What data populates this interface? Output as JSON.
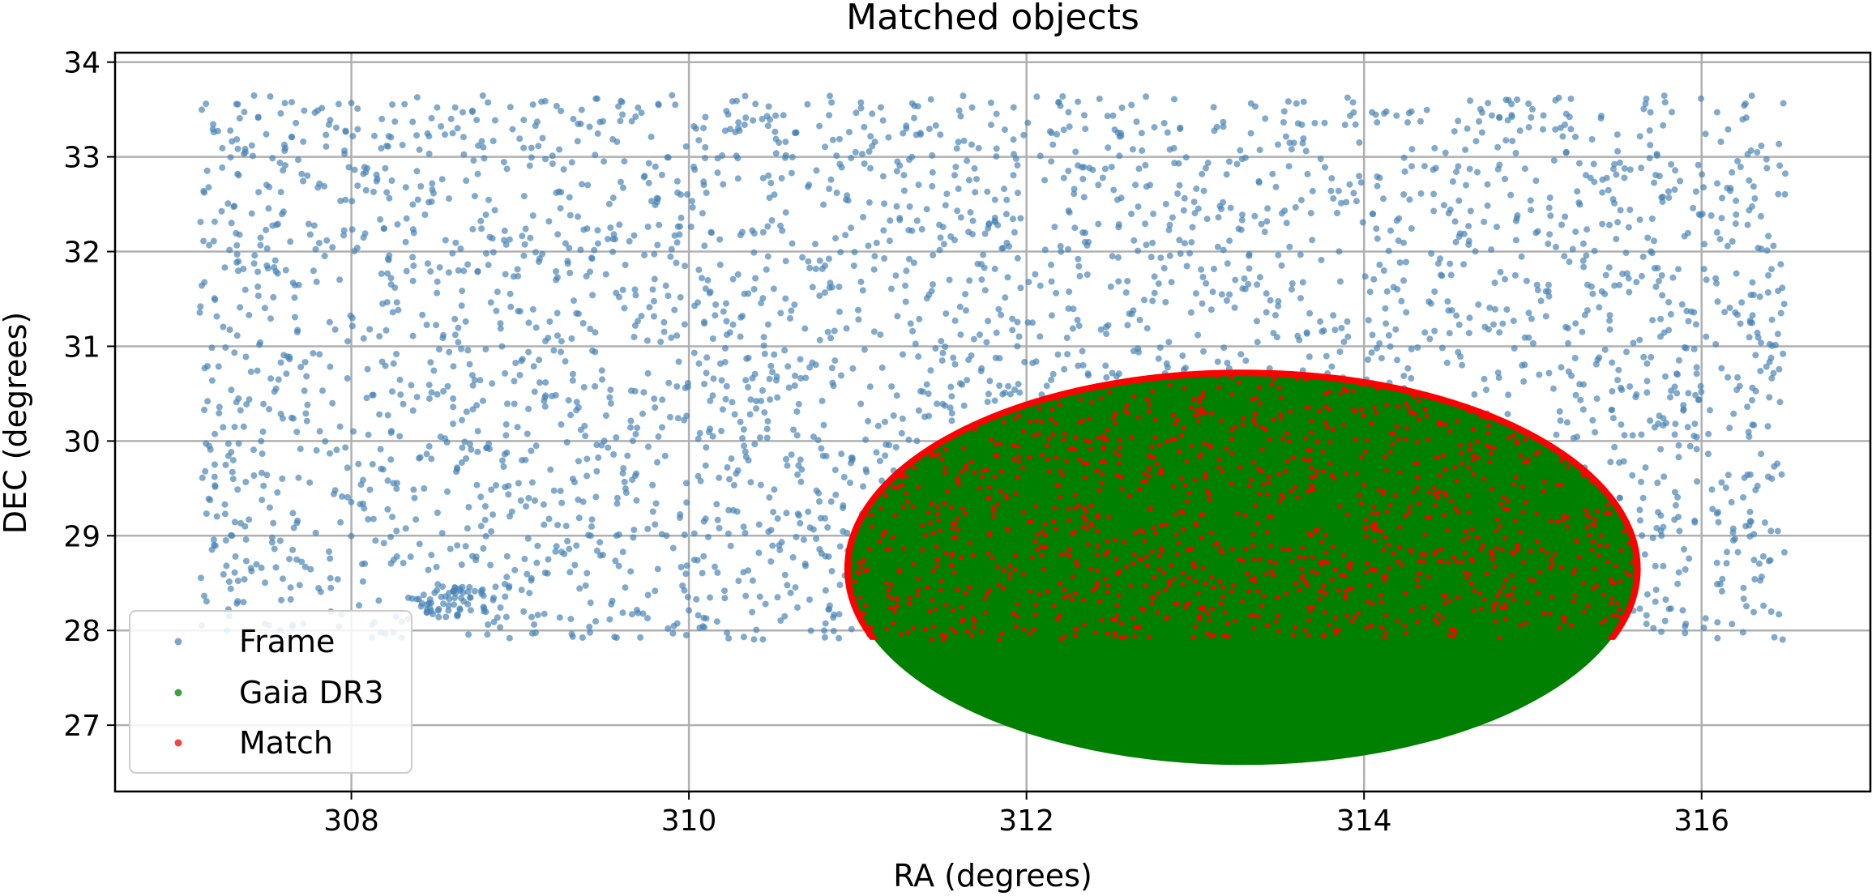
{
  "chart_data": {
    "type": "scatter",
    "title": "Matched objects",
    "xlabel": "RA (degrees)",
    "ylabel": "DEC (degrees)",
    "xlim": [
      306.6,
      317.0
    ],
    "ylim": [
      26.3,
      34.1
    ],
    "xticks": [
      308,
      310,
      312,
      314,
      316
    ],
    "yticks": [
      27,
      28,
      29,
      30,
      31,
      32,
      33,
      34
    ],
    "grid": true,
    "legend_position": "lower-left",
    "series": [
      {
        "name": "Frame",
        "color": "#4682b4",
        "region": {
          "shape": "rectangle",
          "ra": [
            307.1,
            316.5
          ],
          "dec": [
            27.9,
            33.65
          ]
        },
        "approx_count": 3500,
        "cluster": {
          "center": [
            308.6,
            28.3
          ],
          "radius": 0.25,
          "count": 60
        }
      },
      {
        "name": "Gaia DR3",
        "color": "#008000",
        "region": {
          "shape": "ellipse",
          "center": [
            313.28,
            28.65
          ],
          "ra_half_width": 2.34,
          "dec_half_height": 2.07
        }
      },
      {
        "name": "Match",
        "color": "#ff0000",
        "region": {
          "shape": "ellipse-intersect-rectangle",
          "center": [
            313.28,
            28.65
          ],
          "ra_half_width": 2.34,
          "dec_half_height": 2.07,
          "dec_min": 27.9
        },
        "approx_count": 1600
      }
    ]
  }
}
